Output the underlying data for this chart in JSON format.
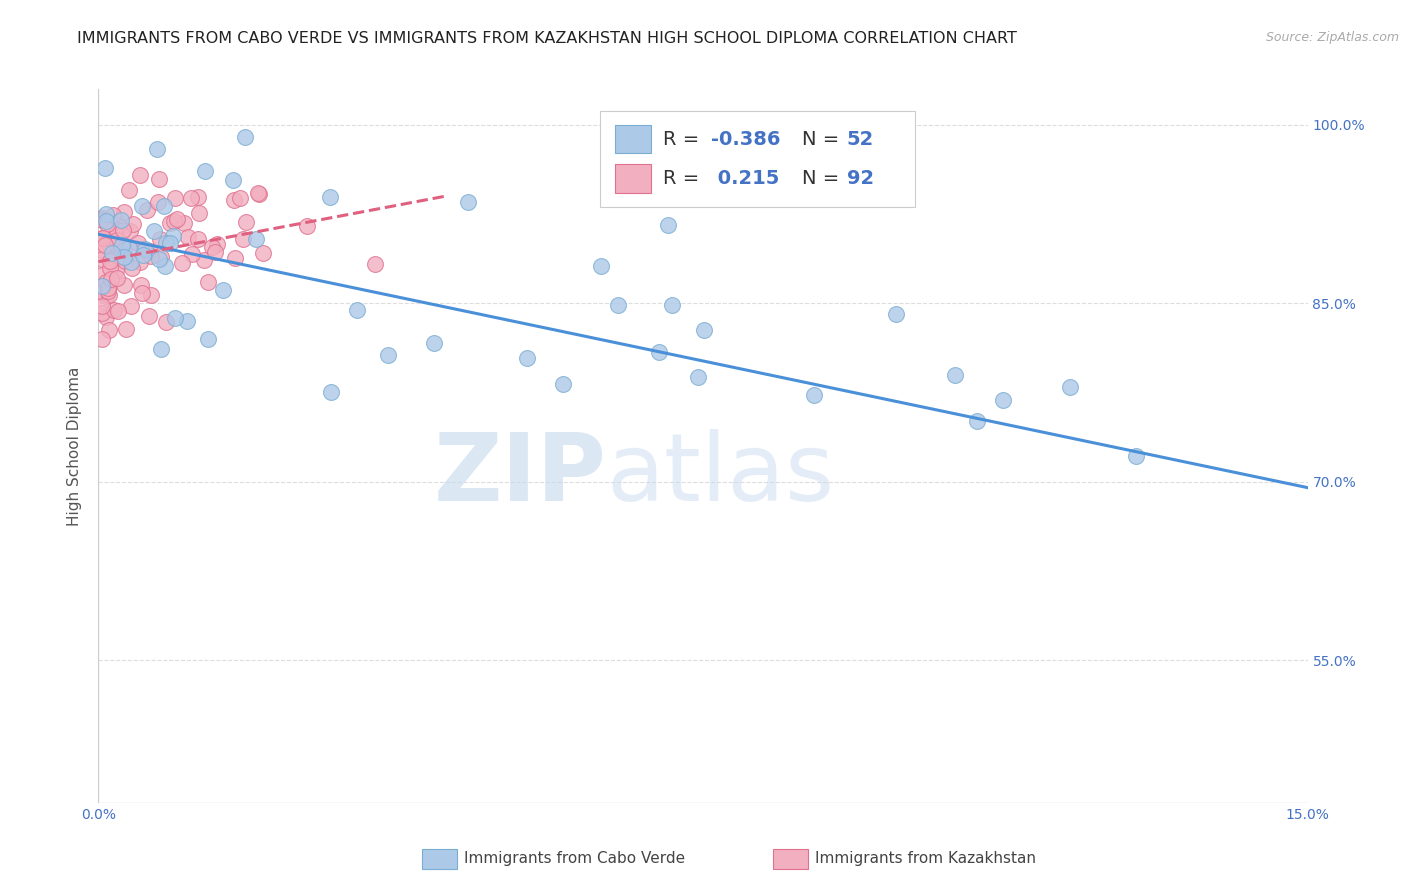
{
  "title": "IMMIGRANTS FROM CABO VERDE VS IMMIGRANTS FROM KAZAKHSTAN HIGH SCHOOL DIPLOMA CORRELATION CHART",
  "source": "Source: ZipAtlas.com",
  "ylabel": "High School Diploma",
  "xlim": [
    0.0,
    0.15
  ],
  "ylim": [
    0.43,
    1.03
  ],
  "ytick_labels_right": [
    "100.0%",
    "85.0%",
    "70.0%",
    "55.0%"
  ],
  "ytick_vals_right": [
    1.0,
    0.85,
    0.7,
    0.55
  ],
  "watermark_zip": "ZIP",
  "watermark_atlas": "atlas",
  "blue_color": "#adc9e8",
  "blue_edge_color": "#7aadd4",
  "pink_color": "#f2afc0",
  "pink_edge_color": "#e07090",
  "blue_line_color": "#4a90d9",
  "pink_line_color": "#e06080",
  "blue_trend_x": [
    0.0,
    0.15
  ],
  "blue_trend_y": [
    0.908,
    0.695
  ],
  "pink_trend_x": [
    0.0,
    0.043
  ],
  "pink_trend_y": [
    0.885,
    0.94
  ],
  "grid_color": "#dddddd",
  "background_color": "#ffffff",
  "title_fontsize": 11.5,
  "source_fontsize": 9,
  "axis_label_fontsize": 11,
  "tick_fontsize": 10,
  "legend_fontsize": 14
}
